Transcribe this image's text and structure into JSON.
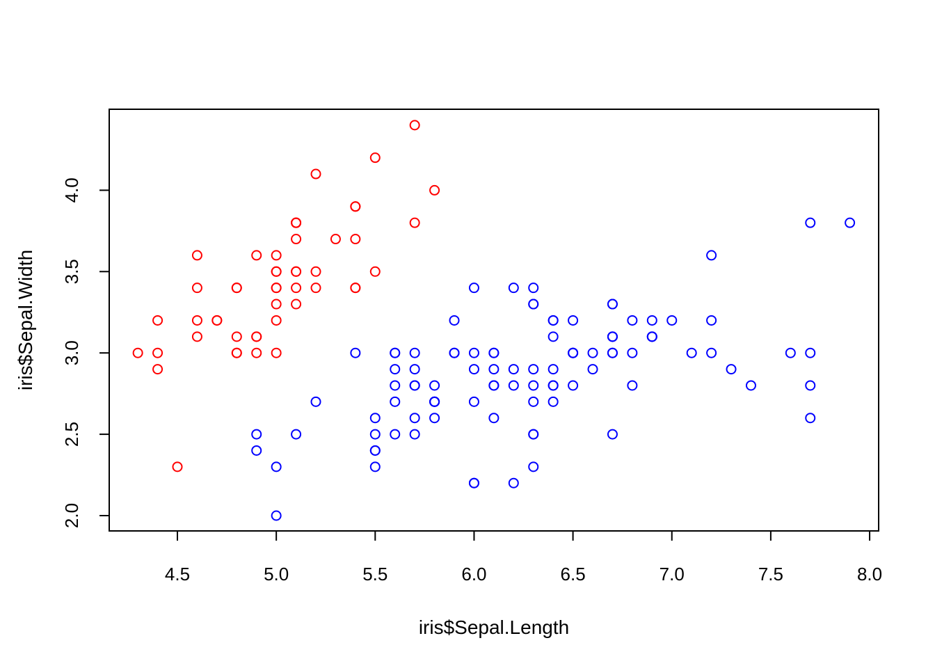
{
  "chart_data": {
    "type": "scatter",
    "title": "",
    "xlabel": "iris$Sepal.Length",
    "ylabel": "iris$Sepal.Width",
    "xlim": [
      4.3,
      7.9
    ],
    "ylim": [
      2.0,
      4.4
    ],
    "xticks": [
      "4.5",
      "5.0",
      "5.5",
      "6.0",
      "6.5",
      "7.0",
      "7.5",
      "8.0"
    ],
    "yticks": [
      "2.0",
      "2.5",
      "3.0",
      "3.5",
      "4.0"
    ],
    "grid": false,
    "legend": "none",
    "marker": "open-circle",
    "series": [
      {
        "color": "#ff0000",
        "points": [
          [
            5.1,
            3.5
          ],
          [
            4.9,
            3.0
          ],
          [
            4.7,
            3.2
          ],
          [
            4.6,
            3.1
          ],
          [
            5.0,
            3.6
          ],
          [
            5.4,
            3.9
          ],
          [
            4.6,
            3.4
          ],
          [
            5.0,
            3.4
          ],
          [
            4.4,
            2.9
          ],
          [
            4.9,
            3.1
          ],
          [
            5.4,
            3.7
          ],
          [
            4.8,
            3.4
          ],
          [
            4.8,
            3.0
          ],
          [
            4.3,
            3.0
          ],
          [
            5.8,
            4.0
          ],
          [
            5.7,
            4.4
          ],
          [
            5.4,
            3.9
          ],
          [
            5.1,
            3.5
          ],
          [
            5.7,
            3.8
          ],
          [
            5.1,
            3.8
          ],
          [
            5.4,
            3.4
          ],
          [
            5.1,
            3.7
          ],
          [
            4.6,
            3.6
          ],
          [
            5.1,
            3.3
          ],
          [
            4.8,
            3.4
          ],
          [
            5.0,
            3.0
          ],
          [
            5.0,
            3.4
          ],
          [
            5.2,
            3.5
          ],
          [
            5.2,
            3.4
          ],
          [
            4.7,
            3.2
          ],
          [
            4.8,
            3.1
          ],
          [
            5.4,
            3.4
          ],
          [
            5.2,
            4.1
          ],
          [
            5.5,
            4.2
          ],
          [
            4.9,
            3.1
          ],
          [
            5.0,
            3.2
          ],
          [
            5.5,
            3.5
          ],
          [
            4.9,
            3.6
          ],
          [
            4.4,
            3.0
          ],
          [
            5.1,
            3.4
          ],
          [
            5.0,
            3.5
          ],
          [
            4.5,
            2.3
          ],
          [
            4.4,
            3.2
          ],
          [
            5.0,
            3.5
          ],
          [
            5.1,
            3.8
          ],
          [
            4.8,
            3.0
          ],
          [
            5.1,
            3.8
          ],
          [
            4.6,
            3.2
          ],
          [
            5.3,
            3.7
          ],
          [
            5.0,
            3.3
          ]
        ]
      },
      {
        "color": "#0000ff",
        "points": [
          [
            7.0,
            3.2
          ],
          [
            6.4,
            3.2
          ],
          [
            6.9,
            3.1
          ],
          [
            5.5,
            2.3
          ],
          [
            6.5,
            2.8
          ],
          [
            5.7,
            2.8
          ],
          [
            6.3,
            3.3
          ],
          [
            4.9,
            2.4
          ],
          [
            6.6,
            2.9
          ],
          [
            5.2,
            2.7
          ],
          [
            5.0,
            2.0
          ],
          [
            5.9,
            3.0
          ],
          [
            6.0,
            2.2
          ],
          [
            6.1,
            2.9
          ],
          [
            5.6,
            2.9
          ],
          [
            6.7,
            3.1
          ],
          [
            5.6,
            3.0
          ],
          [
            5.8,
            2.7
          ],
          [
            6.2,
            2.2
          ],
          [
            5.6,
            2.5
          ],
          [
            5.9,
            3.2
          ],
          [
            6.1,
            2.8
          ],
          [
            6.3,
            2.5
          ],
          [
            6.1,
            2.8
          ],
          [
            6.4,
            2.9
          ],
          [
            6.6,
            3.0
          ],
          [
            6.8,
            2.8
          ],
          [
            6.7,
            3.0
          ],
          [
            6.0,
            2.9
          ],
          [
            5.7,
            2.6
          ],
          [
            5.5,
            2.4
          ],
          [
            5.5,
            2.4
          ],
          [
            5.8,
            2.7
          ],
          [
            6.0,
            2.7
          ],
          [
            5.4,
            3.0
          ],
          [
            6.0,
            3.4
          ],
          [
            6.7,
            3.1
          ],
          [
            6.3,
            2.3
          ],
          [
            5.6,
            3.0
          ],
          [
            5.5,
            2.5
          ],
          [
            5.5,
            2.6
          ],
          [
            6.1,
            3.0
          ],
          [
            5.8,
            2.6
          ],
          [
            5.0,
            2.3
          ],
          [
            5.6,
            2.7
          ],
          [
            5.7,
            3.0
          ],
          [
            5.7,
            2.9
          ],
          [
            6.2,
            2.9
          ],
          [
            5.1,
            2.5
          ],
          [
            5.7,
            2.8
          ],
          [
            6.3,
            3.3
          ],
          [
            5.8,
            2.7
          ],
          [
            7.1,
            3.0
          ],
          [
            6.3,
            2.9
          ],
          [
            6.5,
            3.0
          ],
          [
            7.6,
            3.0
          ],
          [
            4.9,
            2.5
          ],
          [
            7.3,
            2.9
          ],
          [
            6.7,
            2.5
          ],
          [
            7.2,
            3.6
          ],
          [
            6.5,
            3.2
          ],
          [
            6.4,
            2.7
          ],
          [
            6.8,
            3.0
          ],
          [
            5.7,
            2.5
          ],
          [
            5.8,
            2.8
          ],
          [
            6.4,
            3.2
          ],
          [
            6.5,
            3.0
          ],
          [
            7.7,
            3.8
          ],
          [
            7.7,
            2.6
          ],
          [
            6.0,
            2.2
          ],
          [
            6.9,
            3.2
          ],
          [
            5.6,
            2.8
          ],
          [
            7.7,
            2.8
          ],
          [
            6.3,
            2.7
          ],
          [
            6.7,
            3.3
          ],
          [
            7.2,
            3.2
          ],
          [
            6.2,
            2.8
          ],
          [
            6.1,
            3.0
          ],
          [
            6.4,
            2.8
          ],
          [
            7.2,
            3.0
          ],
          [
            7.4,
            2.8
          ],
          [
            7.9,
            3.8
          ],
          [
            6.4,
            2.8
          ],
          [
            6.3,
            2.8
          ],
          [
            6.1,
            2.6
          ],
          [
            7.7,
            3.0
          ],
          [
            6.3,
            3.4
          ],
          [
            6.4,
            3.1
          ],
          [
            6.0,
            3.0
          ],
          [
            6.9,
            3.1
          ],
          [
            6.7,
            3.1
          ],
          [
            6.9,
            3.1
          ],
          [
            5.8,
            2.7
          ],
          [
            6.8,
            3.2
          ],
          [
            6.7,
            3.3
          ],
          [
            6.7,
            3.0
          ],
          [
            6.3,
            2.5
          ],
          [
            6.5,
            3.0
          ],
          [
            6.2,
            3.4
          ],
          [
            5.9,
            3.0
          ]
        ]
      }
    ]
  }
}
